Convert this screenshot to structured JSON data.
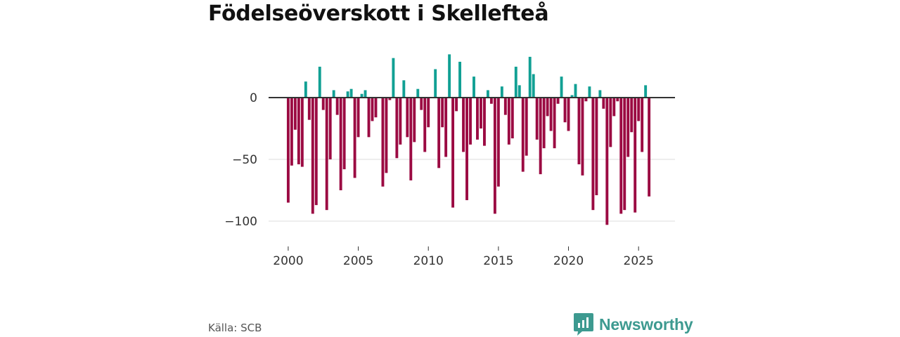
{
  "title": "Födelseöverskott i Skellefteå",
  "source": "Källa: SCB",
  "brand": {
    "name": "Newsworthy",
    "logo_icon": "bar-chart-speech-bubble-icon"
  },
  "colors": {
    "positive": "#11a094",
    "negative": "#9b0a42",
    "zero_line": "#333333",
    "grid": "#dddddd",
    "brand": "#3d9a90"
  },
  "chart_data": {
    "type": "bar",
    "title": "Födelseöverskott i Skellefteå",
    "xlabel": "",
    "ylabel": "",
    "x_ticks": [
      2000,
      2005,
      2010,
      2015,
      2020,
      2025
    ],
    "x_tick_labels": [
      "2000",
      "2005",
      "2010",
      "2015",
      "2020",
      "2025"
    ],
    "y_ticks": [
      0,
      -50,
      -100
    ],
    "y_tick_labels": [
      "0",
      "−50",
      "−100"
    ],
    "xlim": [
      1998.6,
      2027.6
    ],
    "ylim": [
      -115,
      40
    ],
    "grid": true,
    "series": [
      {
        "name": "Födelseöverskott",
        "start": 2000.0,
        "period": 0.25,
        "values": [
          -85,
          -55,
          -26,
          -54,
          -56,
          13,
          -18,
          -94,
          -87,
          25,
          -10,
          -91,
          -50,
          6,
          -14,
          -75,
          -58,
          5,
          7,
          -65,
          -32,
          3,
          6,
          -32,
          -19,
          -16,
          0,
          -72,
          -61,
          -2,
          32,
          -49,
          -38,
          14,
          -32,
          -67,
          -36,
          7,
          -10,
          -44,
          -24,
          0,
          23,
          -57,
          -24,
          -48,
          35,
          -89,
          -11,
          29,
          -44,
          -83,
          -38,
          17,
          -34,
          -25,
          -39,
          6,
          -5,
          -94,
          -72,
          9,
          -14,
          -38,
          -33,
          25,
          10,
          -60,
          -47,
          33,
          19,
          -34,
          -62,
          -41,
          -15,
          -27,
          -41,
          -5,
          17,
          -20,
          -27,
          2,
          11,
          -54,
          -63,
          -3,
          9,
          -91,
          -79,
          6,
          -9,
          -103,
          -40,
          -15,
          -3,
          -94,
          -91,
          -48,
          -28,
          -93,
          -19,
          -44,
          10,
          -80
        ]
      }
    ]
  }
}
